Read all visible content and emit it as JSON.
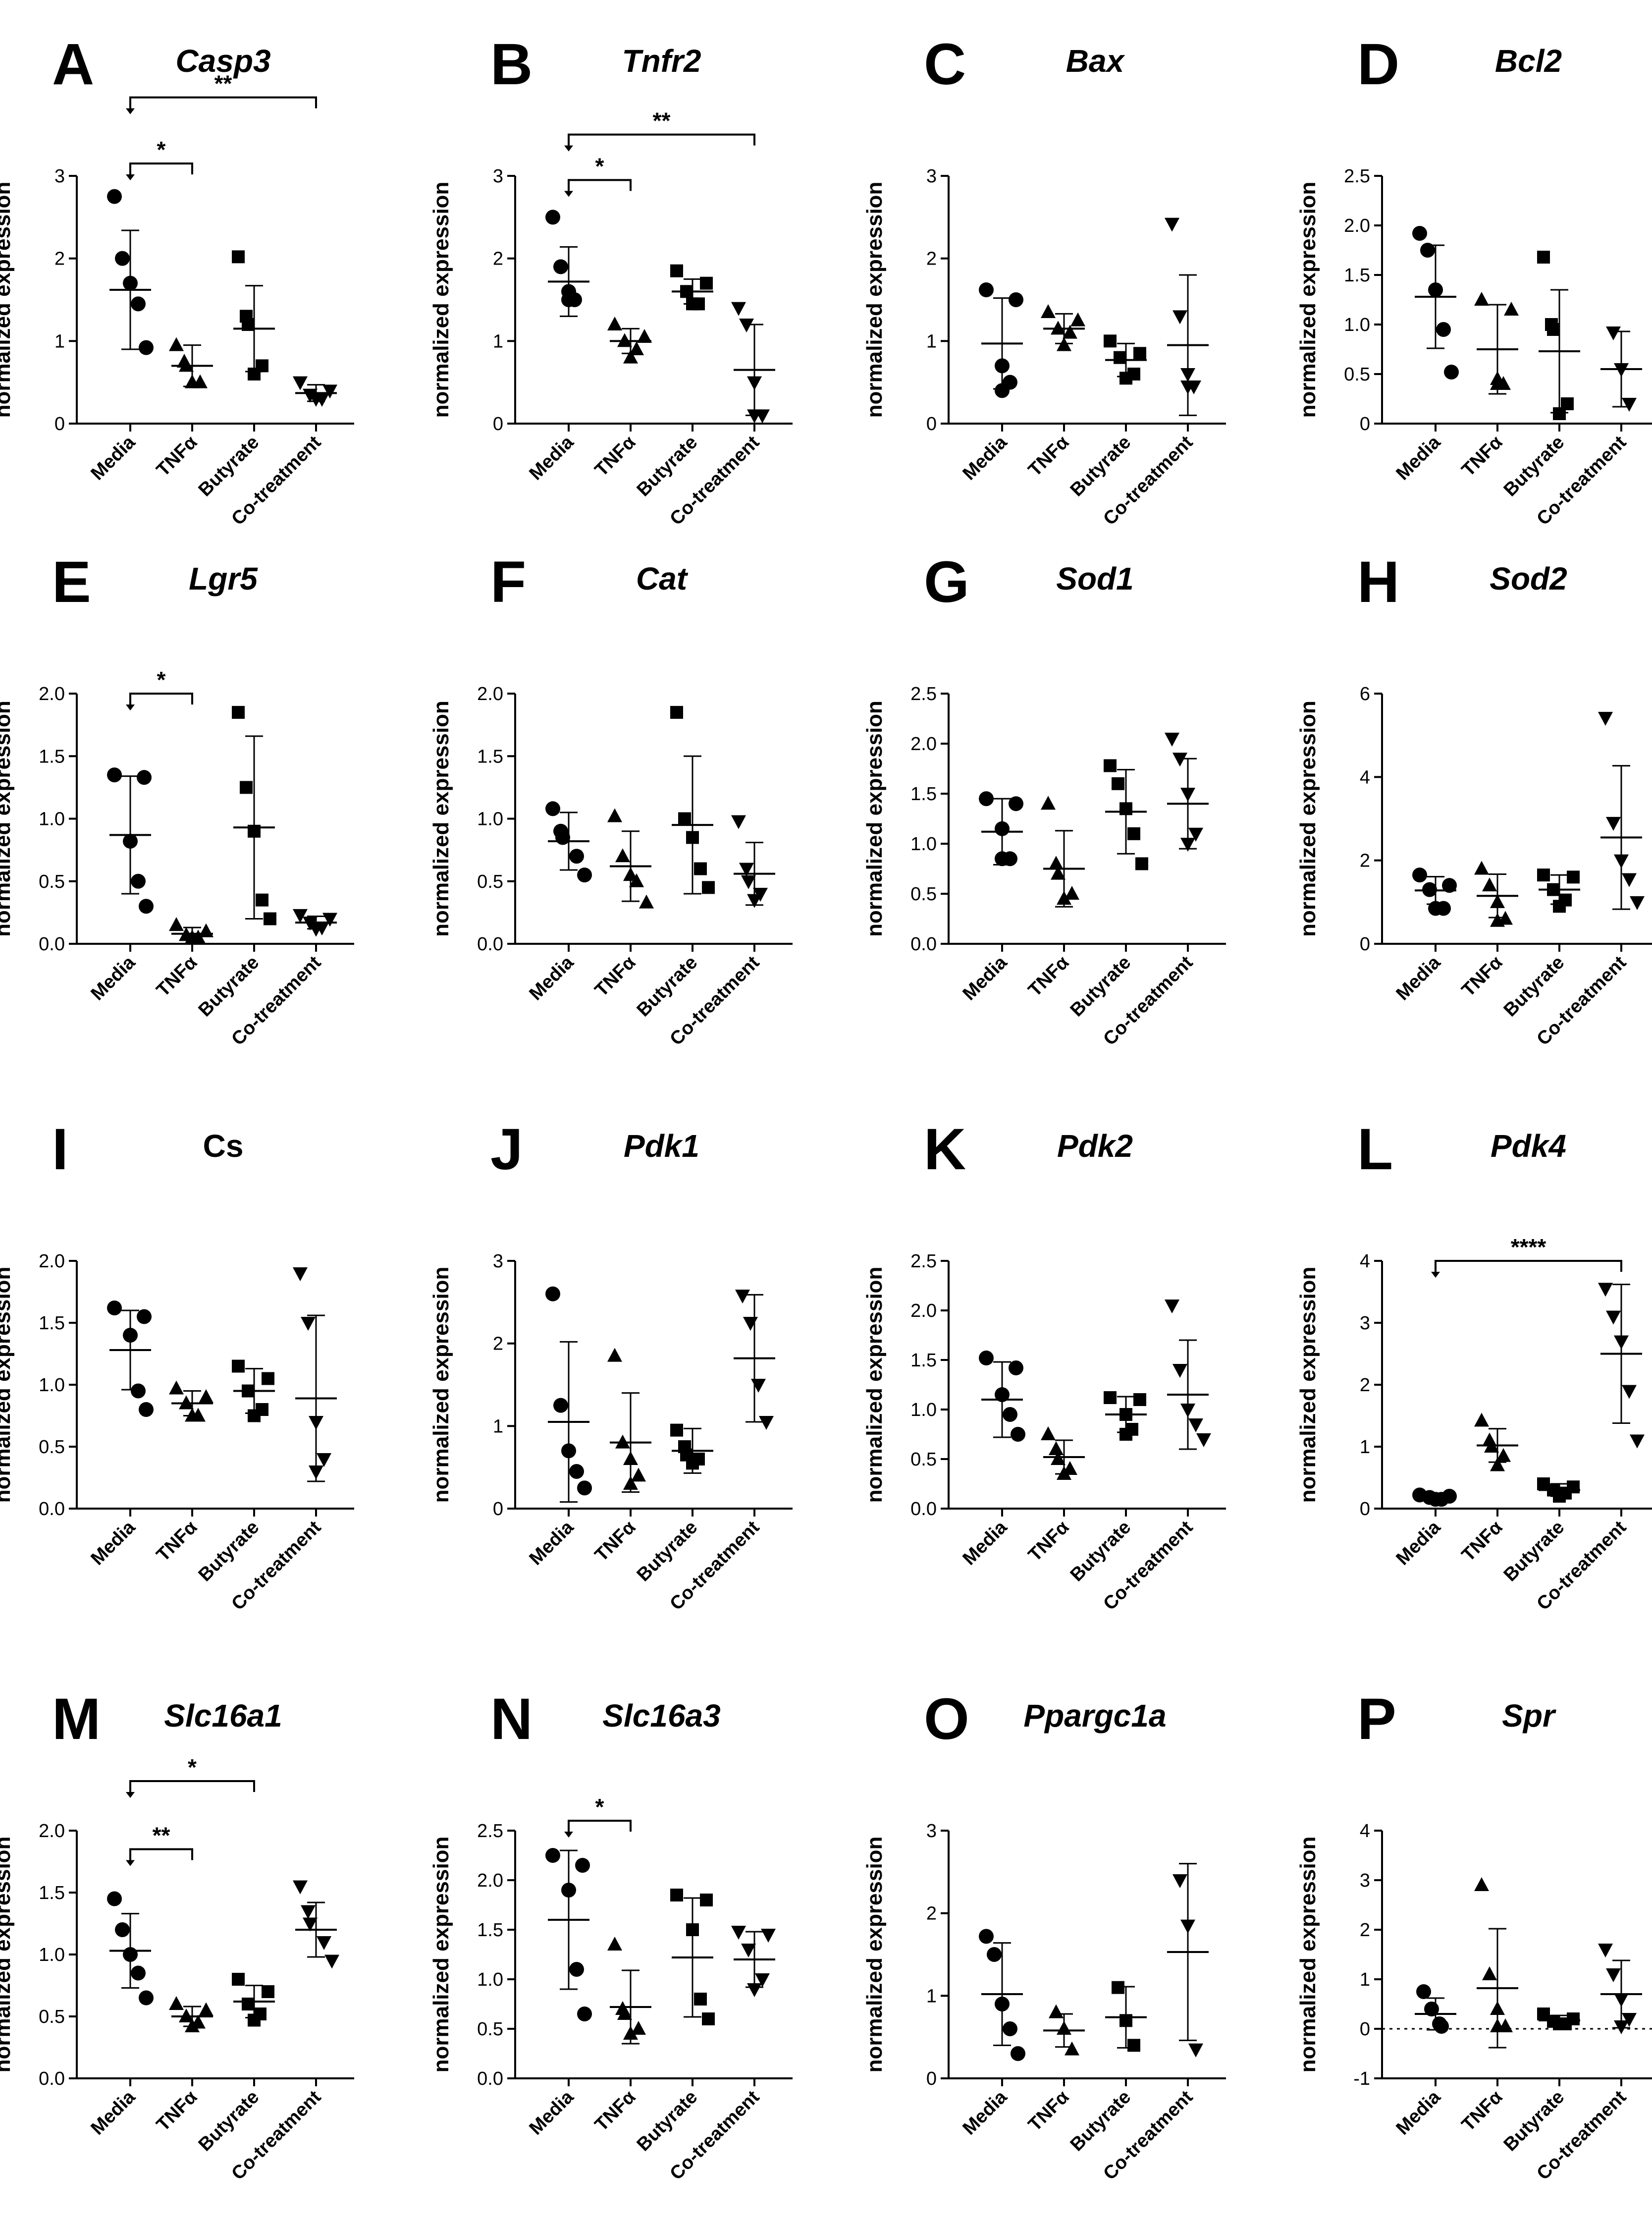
{
  "figure": {
    "ylabel": "normalized expression",
    "categories": [
      "Media",
      "TNFα",
      "Butyrate",
      "Co-treatment"
    ]
  },
  "chart_data": [
    {
      "type": "scatter",
      "letter": "A",
      "title": "Casp3",
      "italic": true,
      "ylim": [
        0,
        3
      ],
      "ticks": [
        "0",
        "1",
        "2",
        "3"
      ],
      "zero_line": false,
      "groups": [
        {
          "mean": 1.62,
          "sd": 0.72,
          "points": [
            2.75,
            2.0,
            1.7,
            1.45,
            0.92
          ]
        },
        {
          "mean": 0.7,
          "sd": 0.25,
          "points": [
            0.95,
            0.75,
            0.7,
            0.5,
            0.5
          ]
        },
        {
          "mean": 1.15,
          "sd": 0.52,
          "points": [
            2.02,
            1.3,
            1.2,
            0.7,
            0.6
          ]
        },
        {
          "mean": 0.37,
          "sd": 0.1,
          "points": [
            0.5,
            0.4,
            0.35,
            0.3,
            0.3
          ]
        }
      ],
      "sig": [
        {
          "from": 0,
          "to": 1,
          "label": "*",
          "y": 3.15
        },
        {
          "from": 0,
          "to": 3,
          "label": "**",
          "y": 3.95
        }
      ]
    },
    {
      "type": "scatter",
      "letter": "B",
      "title": "Tnfr2",
      "italic": true,
      "ylim": [
        0,
        3
      ],
      "ticks": [
        "0",
        "1",
        "2",
        "3"
      ],
      "zero_line": false,
      "groups": [
        {
          "mean": 1.72,
          "sd": 0.42,
          "points": [
            2.5,
            1.9,
            1.6,
            1.5,
            1.5
          ]
        },
        {
          "mean": 1.0,
          "sd": 0.15,
          "points": [
            1.2,
            1.05,
            1.0,
            0.9,
            0.8
          ]
        },
        {
          "mean": 1.6,
          "sd": 0.15,
          "points": [
            1.85,
            1.7,
            1.6,
            1.45,
            1.45
          ]
        },
        {
          "mean": 0.65,
          "sd": 0.55,
          "points": [
            1.4,
            1.2,
            0.5,
            0.1,
            0.1
          ]
        }
      ],
      "sig": [
        {
          "from": 0,
          "to": 1,
          "label": "*",
          "y": 2.95
        },
        {
          "from": 0,
          "to": 3,
          "label": "**",
          "y": 3.5
        }
      ]
    },
    {
      "type": "scatter",
      "letter": "C",
      "title": "Bax",
      "italic": true,
      "ylim": [
        0,
        3
      ],
      "ticks": [
        "0",
        "1",
        "2",
        "3"
      ],
      "zero_line": false,
      "groups": [
        {
          "mean": 0.97,
          "sd": 0.55,
          "points": [
            1.62,
            1.5,
            0.7,
            0.5,
            0.4
          ]
        },
        {
          "mean": 1.15,
          "sd": 0.18,
          "points": [
            1.35,
            1.25,
            1.15,
            1.1,
            0.95
          ]
        },
        {
          "mean": 0.77,
          "sd": 0.2,
          "points": [
            1.0,
            0.85,
            0.8,
            0.6,
            0.55
          ]
        },
        {
          "mean": 0.95,
          "sd": 0.85,
          "points": [
            2.42,
            1.3,
            0.6,
            0.45,
            0.45
          ]
        }
      ],
      "sig": []
    },
    {
      "type": "scatter",
      "letter": "D",
      "title": "Bcl2",
      "italic": true,
      "ylim": [
        0,
        2.5
      ],
      "ticks": [
        "0",
        "0.5",
        "1.0",
        "1.5",
        "2.0",
        "2.5"
      ],
      "zero_line": false,
      "groups": [
        {
          "mean": 1.28,
          "sd": 0.52,
          "points": [
            1.92,
            1.75,
            1.35,
            0.95,
            0.52
          ]
        },
        {
          "mean": 0.75,
          "sd": 0.45,
          "points": [
            1.25,
            1.15,
            0.45,
            0.4,
            0.4
          ]
        },
        {
          "mean": 0.73,
          "sd": 0.62,
          "points": [
            1.68,
            1.0,
            0.95,
            0.2,
            0.1
          ]
        },
        {
          "mean": 0.55,
          "sd": 0.38,
          "points": [
            0.92,
            0.55,
            0.2
          ]
        }
      ],
      "sig": []
    },
    {
      "type": "scatter",
      "letter": "E",
      "title": "Lgr5",
      "italic": true,
      "ylim": [
        0,
        2.0
      ],
      "ticks": [
        "0.0",
        "0.5",
        "1.0",
        "1.5",
        "2.0"
      ],
      "zero_line": false,
      "groups": [
        {
          "mean": 0.87,
          "sd": 0.47,
          "points": [
            1.35,
            1.33,
            0.82,
            0.5,
            0.3
          ]
        },
        {
          "mean": 0.08,
          "sd": 0.05,
          "points": [
            0.15,
            0.1,
            0.07,
            0.05,
            0.05
          ]
        },
        {
          "mean": 0.93,
          "sd": 0.73,
          "points": [
            1.85,
            1.25,
            0.9,
            0.35,
            0.2
          ]
        },
        {
          "mean": 0.17,
          "sd": 0.05,
          "points": [
            0.23,
            0.2,
            0.17,
            0.13,
            0.12
          ]
        }
      ],
      "sig": [
        {
          "from": 0,
          "to": 1,
          "label": "*",
          "y": 2.0
        }
      ]
    },
    {
      "type": "scatter",
      "letter": "F",
      "title": "Cat",
      "italic": true,
      "ylim": [
        0,
        2.0
      ],
      "ticks": [
        "0.0",
        "0.5",
        "1.0",
        "1.5",
        "2.0"
      ],
      "zero_line": false,
      "groups": [
        {
          "mean": 0.82,
          "sd": 0.23,
          "points": [
            1.08,
            0.9,
            0.85,
            0.7,
            0.55
          ]
        },
        {
          "mean": 0.62,
          "sd": 0.28,
          "points": [
            1.02,
            0.7,
            0.55,
            0.5,
            0.33
          ]
        },
        {
          "mean": 0.95,
          "sd": 0.55,
          "points": [
            1.85,
            1.0,
            0.85,
            0.6,
            0.45
          ]
        },
        {
          "mean": 0.56,
          "sd": 0.25,
          "points": [
            0.98,
            0.6,
            0.5,
            0.4,
            0.35
          ]
        }
      ],
      "sig": []
    },
    {
      "type": "scatter",
      "letter": "G",
      "title": "Sod1",
      "italic": true,
      "ylim": [
        0,
        2.5
      ],
      "ticks": [
        "0.0",
        "0.5",
        "1.0",
        "1.5",
        "2.0",
        "2.5"
      ],
      "zero_line": false,
      "groups": [
        {
          "mean": 1.12,
          "sd": 0.33,
          "points": [
            1.45,
            1.4,
            1.15,
            0.85,
            0.85
          ]
        },
        {
          "mean": 0.75,
          "sd": 0.38,
          "points": [
            1.4,
            0.8,
            0.7,
            0.5,
            0.45
          ]
        },
        {
          "mean": 1.32,
          "sd": 0.42,
          "points": [
            1.78,
            1.6,
            1.35,
            1.1,
            0.8
          ]
        },
        {
          "mean": 1.4,
          "sd": 0.45,
          "points": [
            2.05,
            1.85,
            1.5,
            1.1,
            1.0
          ]
        }
      ],
      "sig": []
    },
    {
      "type": "scatter",
      "letter": "H",
      "title": "Sod2",
      "italic": true,
      "ylim": [
        0,
        6
      ],
      "ticks": [
        "0",
        "2",
        "4",
        "6"
      ],
      "zero_line": false,
      "groups": [
        {
          "mean": 1.28,
          "sd": 0.33,
          "points": [
            1.65,
            1.4,
            1.3,
            0.85,
            0.85
          ]
        },
        {
          "mean": 1.15,
          "sd": 0.52,
          "points": [
            1.8,
            1.4,
            1.0,
            0.6,
            0.55
          ]
        },
        {
          "mean": 1.3,
          "sd": 0.35,
          "points": [
            1.65,
            1.6,
            1.3,
            1.05,
            0.9
          ]
        },
        {
          "mean": 2.55,
          "sd": 1.72,
          "points": [
            5.42,
            2.9,
            2.0,
            1.55,
            1.0
          ]
        }
      ],
      "sig": []
    },
    {
      "type": "scatter",
      "letter": "I",
      "title": "Cs",
      "italic": false,
      "ylim": [
        0,
        2.0
      ],
      "ticks": [
        "0.0",
        "0.5",
        "1.0",
        "1.5",
        "2.0"
      ],
      "zero_line": false,
      "groups": [
        {
          "mean": 1.28,
          "sd": 0.32,
          "points": [
            1.62,
            1.55,
            1.4,
            0.95,
            0.8
          ]
        },
        {
          "mean": 0.85,
          "sd": 0.1,
          "points": [
            0.97,
            0.9,
            0.85,
            0.75,
            0.75
          ]
        },
        {
          "mean": 0.95,
          "sd": 0.18,
          "points": [
            1.15,
            1.05,
            0.95,
            0.8,
            0.75
          ]
        },
        {
          "mean": 0.89,
          "sd": 0.67,
          "points": [
            1.9,
            1.5,
            0.7,
            0.4,
            0.3
          ]
        }
      ],
      "sig": []
    },
    {
      "type": "scatter",
      "letter": "J",
      "title": "Pdk1",
      "italic": true,
      "ylim": [
        0,
        3
      ],
      "ticks": [
        "0",
        "1",
        "2",
        "3"
      ],
      "zero_line": false,
      "groups": [
        {
          "mean": 1.05,
          "sd": 0.97,
          "points": [
            2.6,
            1.25,
            0.7,
            0.45,
            0.25
          ]
        },
        {
          "mean": 0.8,
          "sd": 0.6,
          "points": [
            1.85,
            0.8,
            0.6,
            0.4,
            0.3
          ]
        },
        {
          "mean": 0.7,
          "sd": 0.27,
          "points": [
            0.95,
            0.75,
            0.65,
            0.6,
            0.55
          ]
        },
        {
          "mean": 1.82,
          "sd": 0.77,
          "points": [
            2.58,
            2.25,
            1.5,
            1.05
          ]
        }
      ],
      "sig": []
    },
    {
      "type": "scatter",
      "letter": "K",
      "title": "Pdk2",
      "italic": true,
      "ylim": [
        0,
        2.5
      ],
      "ticks": [
        "0.0",
        "0.5",
        "1.0",
        "1.5",
        "2.0",
        "2.5"
      ],
      "zero_line": false,
      "groups": [
        {
          "mean": 1.1,
          "sd": 0.38,
          "points": [
            1.52,
            1.42,
            1.15,
            0.95,
            0.75
          ]
        },
        {
          "mean": 0.52,
          "sd": 0.17,
          "points": [
            0.75,
            0.6,
            0.5,
            0.4,
            0.35
          ]
        },
        {
          "mean": 0.95,
          "sd": 0.18,
          "points": [
            1.12,
            1.1,
            0.95,
            0.8,
            0.75
          ]
        },
        {
          "mean": 1.15,
          "sd": 0.55,
          "points": [
            2.05,
            1.4,
            1.0,
            0.85,
            0.7
          ]
        }
      ],
      "sig": []
    },
    {
      "type": "scatter",
      "letter": "L",
      "title": "Pdk4",
      "italic": true,
      "ylim": [
        0,
        4
      ],
      "ticks": [
        "0",
        "1",
        "2",
        "3",
        "4"
      ],
      "zero_line": false,
      "groups": [
        {
          "mean": 0.18,
          "sd": 0.05,
          "points": [
            0.22,
            0.2,
            0.18,
            0.15,
            0.15
          ]
        },
        {
          "mean": 1.02,
          "sd": 0.27,
          "points": [
            1.42,
            1.1,
            1.0,
            0.85,
            0.7
          ]
        },
        {
          "mean": 0.3,
          "sd": 0.1,
          "points": [
            0.4,
            0.35,
            0.3,
            0.25,
            0.2
          ]
        },
        {
          "mean": 2.5,
          "sd": 1.12,
          "points": [
            3.55,
            3.1,
            2.7,
            1.9,
            1.1
          ]
        }
      ],
      "sig": [
        {
          "from": 0,
          "to": 3,
          "label": "****",
          "y": 4.0
        }
      ]
    },
    {
      "type": "scatter",
      "letter": "M",
      "title": "Slc16a1",
      "italic": true,
      "ylim": [
        0,
        2.0
      ],
      "ticks": [
        "0.0",
        "0.5",
        "1.0",
        "1.5",
        "2.0"
      ],
      "zero_line": false,
      "groups": [
        {
          "mean": 1.03,
          "sd": 0.3,
          "points": [
            1.45,
            1.2,
            1.0,
            0.85,
            0.65
          ]
        },
        {
          "mean": 0.5,
          "sd": 0.08,
          "points": [
            0.6,
            0.55,
            0.5,
            0.45,
            0.42
          ]
        },
        {
          "mean": 0.62,
          "sd": 0.13,
          "points": [
            0.8,
            0.7,
            0.6,
            0.52,
            0.47
          ]
        },
        {
          "mean": 1.2,
          "sd": 0.22,
          "points": [
            1.55,
            1.35,
            1.25,
            1.1,
            0.95
          ]
        }
      ],
      "sig": [
        {
          "from": 0,
          "to": 1,
          "label": "**",
          "y": 1.85
        },
        {
          "from": 0,
          "to": 2,
          "label": "*",
          "y": 2.4
        }
      ]
    },
    {
      "type": "scatter",
      "letter": "N",
      "title": "Slc16a3",
      "italic": true,
      "ylim": [
        0,
        2.5
      ],
      "ticks": [
        "0.0",
        "0.5",
        "1.0",
        "1.5",
        "2.0",
        "2.5"
      ],
      "zero_line": false,
      "groups": [
        {
          "mean": 1.6,
          "sd": 0.7,
          "points": [
            2.25,
            2.15,
            1.9,
            1.1,
            0.65
          ]
        },
        {
          "mean": 0.72,
          "sd": 0.37,
          "points": [
            1.35,
            0.7,
            0.65,
            0.5,
            0.45
          ]
        },
        {
          "mean": 1.22,
          "sd": 0.6,
          "points": [
            1.85,
            1.8,
            1.5,
            0.8,
            0.6
          ]
        },
        {
          "mean": 1.2,
          "sd": 0.28,
          "points": [
            1.48,
            1.45,
            1.3,
            1.0,
            0.9
          ]
        }
      ],
      "sig": [
        {
          "from": 0,
          "to": 1,
          "label": "*",
          "y": 2.6
        }
      ]
    },
    {
      "type": "scatter",
      "letter": "O",
      "title": "Ppargc1a",
      "italic": true,
      "ylim": [
        0,
        3
      ],
      "ticks": [
        "0",
        "1",
        "2",
        "3"
      ],
      "zero_line": false,
      "groups": [
        {
          "mean": 1.02,
          "sd": 0.62,
          "points": [
            1.72,
            1.5,
            0.9,
            0.6,
            0.3
          ]
        },
        {
          "mean": 0.58,
          "sd": 0.2,
          "points": [
            0.8,
            0.6,
            0.35
          ]
        },
        {
          "mean": 0.74,
          "sd": 0.37,
          "points": [
            1.1,
            0.7,
            0.4
          ]
        },
        {
          "mean": 1.53,
          "sd": 1.07,
          "points": [
            2.4,
            1.85,
            0.35
          ]
        }
      ],
      "sig": []
    },
    {
      "type": "scatter",
      "letter": "P",
      "title": "Spr",
      "italic": true,
      "ylim": [
        -1,
        4
      ],
      "ticks": [
        "-1",
        "0",
        "1",
        "2",
        "3",
        "4"
      ],
      "zero_line": true,
      "groups": [
        {
          "mean": 0.3,
          "sd": 0.32,
          "points": [
            0.75,
            0.4,
            0.1,
            0.05
          ]
        },
        {
          "mean": 0.82,
          "sd": 1.2,
          "points": [
            2.9,
            1.1,
            0.4,
            0.05,
            0.05
          ]
        },
        {
          "mean": 0.17,
          "sd": 0.1,
          "points": [
            0.3,
            0.2,
            0.15,
            0.1,
            0.1
          ]
        },
        {
          "mean": 0.7,
          "sd": 0.68,
          "points": [
            1.6,
            1.1,
            0.6,
            0.2,
            0.05
          ]
        }
      ],
      "sig": []
    }
  ]
}
